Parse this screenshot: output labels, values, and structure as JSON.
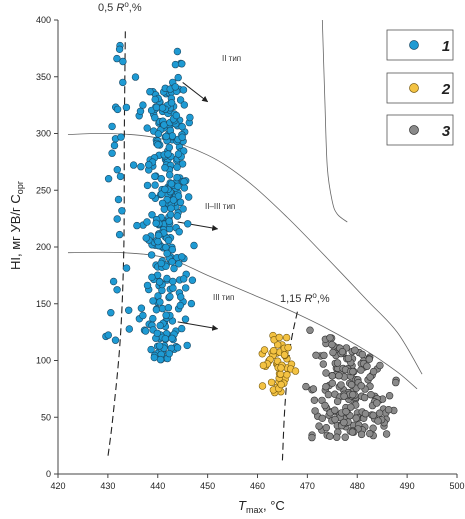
{
  "chart_data": {
    "type": "scatter",
    "xlim": [
      420,
      500
    ],
    "ylim": [
      0,
      400
    ],
    "xticks": [
      "420",
      "430",
      "440",
      "450",
      "460",
      "470",
      "480",
      "490",
      "500"
    ],
    "yticks": [
      "0",
      "50",
      "100",
      "150",
      "200",
      "250",
      "300",
      "350",
      "400"
    ],
    "grid": false,
    "legend_position": "top-right",
    "xlabel": {
      "symbol": "T",
      "sub": "max",
      "unit": ", °C"
    },
    "ylabel": {
      "main": "HI, мг УВ/г C",
      "sub": "орг"
    },
    "annotations": {
      "ro_low": {
        "text": "0,5 ",
        "italic": "R",
        "sup": "o",
        "suffix": ",%"
      },
      "ro_high": {
        "text": "1,15 ",
        "italic": "R",
        "sup": "o",
        "suffix": ",%"
      },
      "type_2": "II тип",
      "type_2_3": "II–III тип",
      "type_3": "III тип"
    },
    "series": [
      {
        "name": "1",
        "color": "#1e9ad3",
        "groups": [
          {
            "x_range": [
              435.5,
              448
            ],
            "y_range": [
              100,
              340
            ],
            "count": 320
          },
          {
            "x_range": [
              427,
              437
            ],
            "y_range": [
              110,
              395
            ],
            "count": 32
          },
          {
            "x_range": [
              441,
              447
            ],
            "y_range": [
              325,
              375
            ],
            "count": 10
          }
        ]
      },
      {
        "name": "2",
        "color": "#f3c242",
        "groups": [
          {
            "x_range": [
              460,
              468.5
            ],
            "y_range": [
              70,
              122
            ],
            "count": 50
          }
        ]
      },
      {
        "name": "3",
        "color": "#8a8a8a",
        "groups": [
          {
            "x_range": [
              467,
              490
            ],
            "y_range": [
              32,
              140
            ],
            "count": 190
          }
        ]
      }
    ],
    "curves": {
      "type_2_line": [
        [
          473,
          400
        ],
        [
          473.5,
          330
        ],
        [
          474,
          270
        ],
        [
          475,
          240
        ],
        [
          476,
          229
        ],
        [
          478,
          222
        ]
      ],
      "type_2_3_line": [
        [
          422,
          299
        ],
        [
          430,
          300
        ],
        [
          440,
          296
        ],
        [
          450,
          281
        ],
        [
          458,
          258
        ],
        [
          466,
          226
        ],
        [
          474,
          190
        ],
        [
          482,
          153
        ],
        [
          488,
          125
        ],
        [
          493,
          88
        ]
      ],
      "type_3_line": [
        [
          422,
          195
        ],
        [
          433,
          195
        ],
        [
          442,
          190
        ],
        [
          450,
          175
        ],
        [
          458,
          160
        ],
        [
          466,
          145
        ],
        [
          474,
          128
        ],
        [
          482,
          108
        ],
        [
          488,
          90
        ],
        [
          492,
          75
        ]
      ],
      "ro_low_line": [
        [
          433.5,
          390
        ],
        [
          433.3,
          300
        ],
        [
          433.2,
          200
        ],
        [
          432.5,
          120
        ],
        [
          431,
          50
        ],
        [
          430,
          15
        ]
      ],
      "ro_high_line": [
        [
          468,
          143
        ],
        [
          466.5,
          110
        ],
        [
          465.5,
          60
        ],
        [
          465,
          12
        ]
      ]
    },
    "arrows": [
      {
        "from": [
          445,
          345
        ],
        "to": [
          450,
          328
        ]
      },
      {
        "from": [
          444,
          222
        ],
        "to": [
          452,
          216
        ]
      },
      {
        "from": [
          444,
          134
        ],
        "to": [
          452,
          128
        ]
      }
    ]
  },
  "legend": {
    "items": [
      {
        "label": "1",
        "color": "#1e9ad3"
      },
      {
        "label": "2",
        "color": "#f3c242"
      },
      {
        "label": "3",
        "color": "#8a8a8a"
      }
    ]
  }
}
